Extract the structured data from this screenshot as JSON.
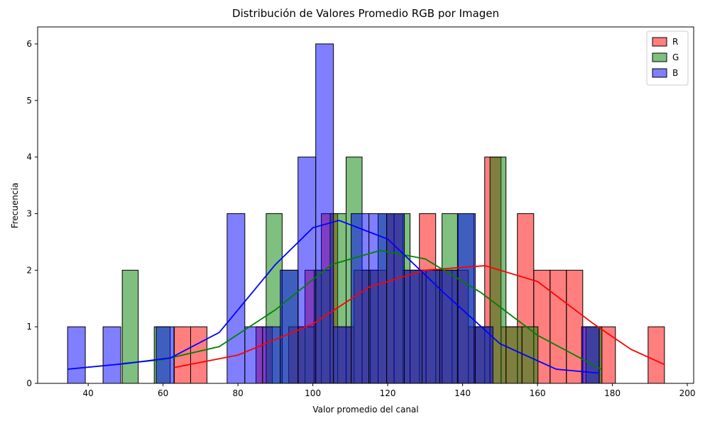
{
  "chart_data": {
    "type": "histogram",
    "title": "Distribución de Valores Promedio RGB por Imagen",
    "x_label": "Valor promedio del canal",
    "y_label": "Frecuencia",
    "xlim": [
      26.5,
      201.7
    ],
    "ylim": [
      0,
      6.3
    ],
    "xticks": [
      40,
      60,
      80,
      100,
      120,
      140,
      160,
      180,
      200
    ],
    "yticks": [
      0,
      1,
      2,
      3,
      4,
      5,
      6
    ],
    "legend": "upper right",
    "series": [
      {
        "name": "R",
        "color": "#ff0000",
        "bins": [
          63.0,
          67.36,
          71.73,
          76.09,
          80.45,
          84.82,
          89.18,
          93.54,
          97.9,
          102.27,
          106.63,
          110.99,
          115.36,
          119.72,
          124.08,
          128.45,
          132.81,
          137.17,
          141.53,
          145.9,
          150.26,
          154.62,
          158.99,
          163.35,
          167.71,
          172.08,
          176.44,
          180.8,
          185.16,
          189.53,
          193.89
        ],
        "values": [
          1,
          1,
          0,
          0,
          0,
          1,
          0,
          1,
          2,
          3,
          1,
          2,
          2,
          3,
          2,
          3,
          2,
          2,
          1,
          4,
          1,
          3,
          2,
          2,
          2,
          1,
          1,
          0,
          0,
          1
        ],
        "kde_x": [
          63,
          80,
          100,
          115,
          130,
          146,
          160,
          175,
          185,
          194
        ],
        "kde_y": [
          0.28,
          0.5,
          1.05,
          1.7,
          2.0,
          2.08,
          1.8,
          1.05,
          0.6,
          0.33
        ]
      },
      {
        "name": "G",
        "color": "#008000",
        "bins": [
          49.1,
          53.37,
          57.64,
          61.91,
          66.18,
          70.45,
          74.72,
          78.99,
          83.26,
          87.53,
          91.8,
          96.07,
          100.34,
          104.61,
          108.88,
          113.15,
          117.42,
          121.69,
          125.96,
          130.23,
          134.5,
          138.77,
          143.04,
          147.31,
          151.58,
          155.85,
          160.12,
          164.39,
          168.66,
          172.93,
          177.2
        ],
        "values": [
          2,
          0,
          1,
          0,
          0,
          0,
          0,
          0,
          0,
          3,
          2,
          1,
          2,
          3,
          4,
          2,
          3,
          3,
          2,
          2,
          3,
          3,
          1,
          4,
          1,
          1,
          0,
          0,
          0,
          1
        ],
        "kde_x": [
          49,
          60,
          75,
          90,
          105,
          118,
          130,
          145,
          160,
          177
        ],
        "kde_y": [
          0.35,
          0.42,
          0.65,
          1.3,
          2.1,
          2.35,
          2.2,
          1.6,
          0.85,
          0.25
        ]
      },
      {
        "name": "B",
        "color": "#0000ff",
        "bins": [
          34.5,
          39.23,
          43.97,
          48.7,
          53.43,
          58.17,
          62.9,
          67.63,
          72.37,
          77.1,
          81.83,
          86.57,
          91.3,
          96.03,
          100.77,
          105.5,
          110.23,
          114.97,
          119.7,
          124.43,
          129.17,
          133.9,
          138.63,
          143.37,
          148.1,
          152.83,
          157.57,
          162.3,
          167.03,
          171.77,
          176.5
        ],
        "values": [
          1,
          0,
          1,
          0,
          0,
          1,
          0,
          0,
          0,
          3,
          1,
          1,
          2,
          4,
          6,
          1,
          3,
          3,
          3,
          2,
          2,
          2,
          3,
          1,
          0,
          0,
          0,
          0,
          0,
          1
        ],
        "kde_x": [
          34.5,
          50,
          62,
          75,
          90,
          100,
          107,
          120,
          135,
          150,
          165,
          176.5
        ],
        "kde_y": [
          0.25,
          0.35,
          0.45,
          0.9,
          2.1,
          2.75,
          2.88,
          2.55,
          1.6,
          0.7,
          0.25,
          0.18
        ]
      }
    ]
  }
}
